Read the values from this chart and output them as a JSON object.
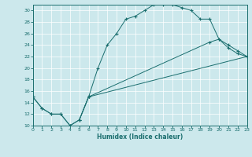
{
  "xlabel": "Humidex (Indice chaleur)",
  "bg_color": "#cce8ec",
  "line_color": "#1a6e6e",
  "grid_color": "#ffffff",
  "xlim": [
    0,
    23
  ],
  "ylim": [
    10,
    31
  ],
  "xticks": [
    0,
    1,
    2,
    3,
    4,
    5,
    6,
    7,
    8,
    9,
    10,
    11,
    12,
    13,
    14,
    15,
    16,
    17,
    18,
    19,
    20,
    21,
    22,
    23
  ],
  "yticks": [
    10,
    12,
    14,
    16,
    18,
    20,
    22,
    24,
    26,
    28,
    30
  ],
  "curve1_x": [
    0,
    1,
    2,
    3,
    4,
    5,
    6,
    7,
    8,
    9,
    10,
    11,
    12,
    13,
    14,
    15,
    16,
    17,
    18,
    19,
    20,
    21,
    22,
    23
  ],
  "curve1_y": [
    15,
    13,
    12,
    12,
    10,
    11,
    15,
    20,
    24,
    26,
    28.5,
    29,
    30,
    31,
    31,
    31,
    30.5,
    30,
    28.5,
    28.5,
    25,
    24,
    23,
    22
  ],
  "curve2_x": [
    0,
    1,
    2,
    3,
    4,
    5,
    6,
    19,
    20,
    21,
    22,
    23
  ],
  "curve2_y": [
    15,
    13,
    12,
    12,
    10,
    11,
    15,
    24.5,
    25,
    23.5,
    22.5,
    22
  ],
  "curve3_x": [
    5,
    6,
    23
  ],
  "curve3_y": [
    11,
    15,
    22
  ]
}
